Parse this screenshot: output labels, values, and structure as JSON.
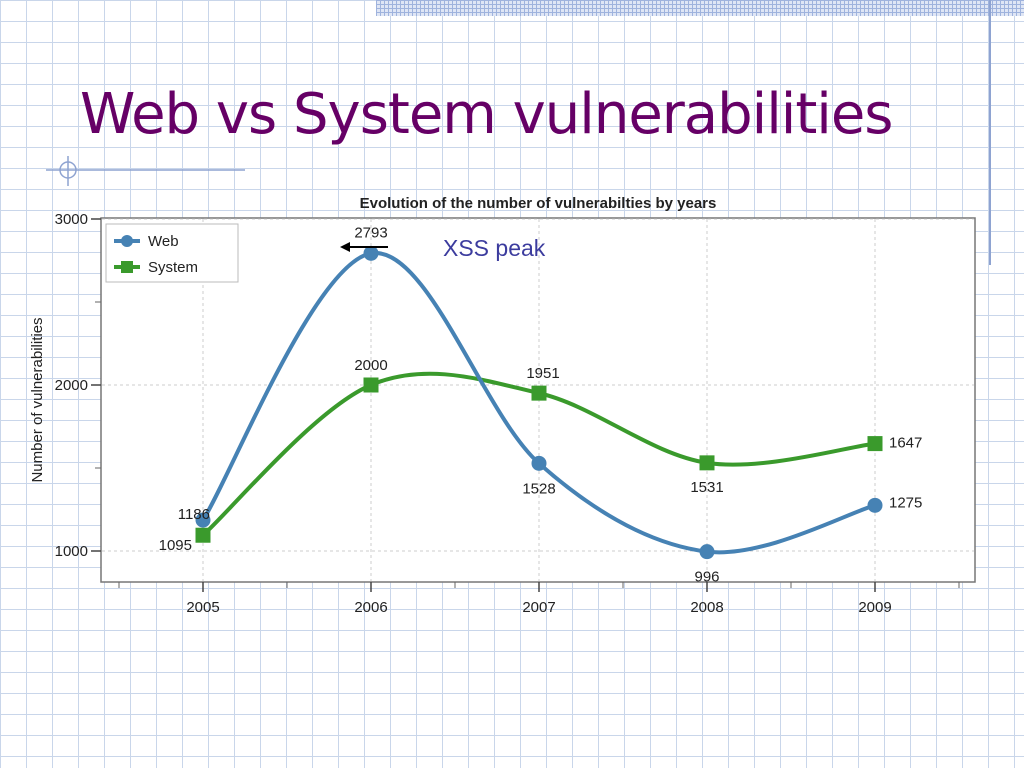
{
  "slide": {
    "title": "Web vs System vulnerabilities",
    "accent_color": "#660066"
  },
  "chart_data": {
    "type": "line",
    "title": "Evolution of the number of vulnerabilties by years",
    "xlabel": "",
    "ylabel": "Number of vulnerabilities",
    "categories": [
      "2005",
      "2006",
      "2007",
      "2008",
      "2009"
    ],
    "ylim": [
      1000,
      3000
    ],
    "yticks": [
      1000,
      2000,
      3000
    ],
    "grid": true,
    "legend_position": "top-left",
    "series": [
      {
        "name": "Web",
        "values": [
          1186,
          2793,
          1528,
          996,
          1275
        ],
        "labels": [
          "1186",
          "2793",
          "1528",
          "996",
          "1275"
        ],
        "color": "#4682b4",
        "marker": "circle"
      },
      {
        "name": "System",
        "values": [
          1095,
          2000,
          1951,
          1531,
          1647
        ],
        "labels": [
          "1095",
          "2000",
          "1951",
          "1531",
          "1647"
        ],
        "color": "#3a9a2c",
        "marker": "square"
      }
    ],
    "annotation": {
      "text": "XSS peak",
      "color": "#3c3c9e",
      "arrow_icon": "left-arrow-icon"
    }
  }
}
